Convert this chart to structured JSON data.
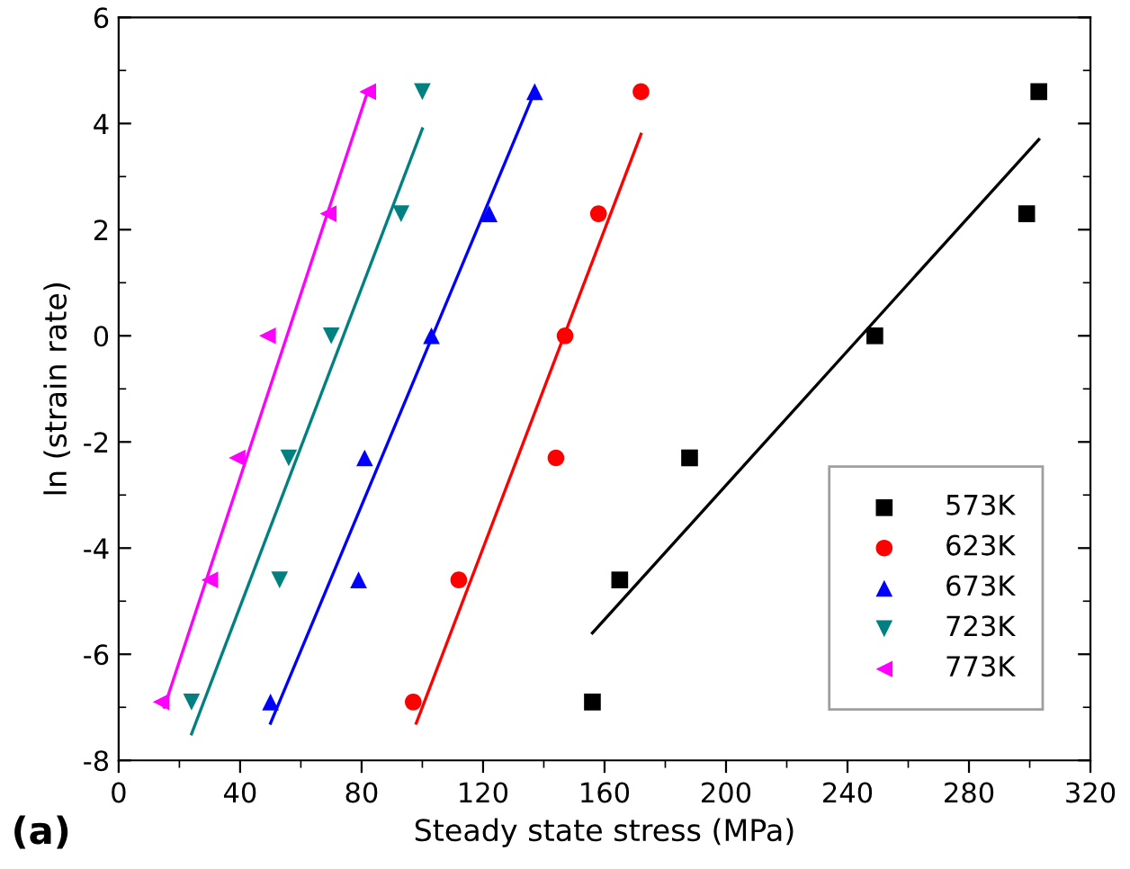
{
  "chart_data": {
    "type": "scatter",
    "xlabel": "Steady state stress (MPa)",
    "ylabel": "ln (strain rate)",
    "annotations": [
      "(a)"
    ],
    "xlim": [
      0,
      320
    ],
    "xticks": [
      0,
      40,
      80,
      120,
      160,
      200,
      240,
      280,
      320
    ],
    "ylim": [
      -8,
      6
    ],
    "yticks": [
      -8,
      -6,
      -4,
      -2,
      0,
      2,
      4,
      6
    ],
    "grid": false,
    "legend": "bottom right",
    "series": [
      {
        "name": "573K",
        "color": "#000000",
        "marker": "square",
        "x": [
          156,
          165,
          188,
          249,
          299,
          303
        ],
        "values": [
          -6.9,
          -4.6,
          -2.3,
          0,
          2.3,
          4.6
        ]
      },
      {
        "name": "623K",
        "color": "#ff0000",
        "marker": "circle",
        "x": [
          97,
          112,
          144,
          147,
          158,
          172
        ],
        "values": [
          -6.9,
          -4.6,
          -2.3,
          0,
          2.3,
          4.6
        ]
      },
      {
        "name": "673K",
        "color": "#0000ff",
        "marker": "triangle",
        "x": [
          50,
          79,
          81,
          103,
          122,
          137
        ],
        "values": [
          -6.9,
          -4.6,
          -2.3,
          0,
          2.3,
          4.6
        ]
      },
      {
        "name": "723K",
        "color": "#008080",
        "marker": "triangle_down",
        "x": [
          24,
          53,
          56,
          70,
          93,
          100
        ],
        "values": [
          -6.9,
          -4.6,
          -2.3,
          0,
          2.3,
          4.6
        ]
      },
      {
        "name": "773K",
        "color": "#ff00ff",
        "marker": "triangle_left",
        "x": [
          14,
          30,
          39,
          49,
          69,
          82
        ],
        "values": [
          -6.9,
          -4.6,
          -2.3,
          0,
          2.3,
          4.6
        ]
      },
      {
        "type": "line",
        "color": "#000000",
        "marker": "none",
        "x": [
          156,
          303
        ],
        "values": [
          -5.6,
          3.7
        ]
      },
      {
        "type": "line",
        "color": "#ff0000",
        "marker": "none",
        "x": [
          98,
          172
        ],
        "values": [
          -7.3,
          3.8
        ]
      },
      {
        "type": "line",
        "color": "#0000ff",
        "marker": "none",
        "x": [
          50,
          137
        ],
        "values": [
          -7.3,
          4.6
        ]
      },
      {
        "type": "line",
        "color": "#008080",
        "marker": "none",
        "x": [
          24,
          100
        ],
        "values": [
          -7.5,
          3.9
        ]
      },
      {
        "type": "line",
        "color": "#ff00ff",
        "marker": "none",
        "x": [
          15,
          82
        ],
        "values": [
          -7.0,
          4.6
        ]
      }
    ]
  }
}
